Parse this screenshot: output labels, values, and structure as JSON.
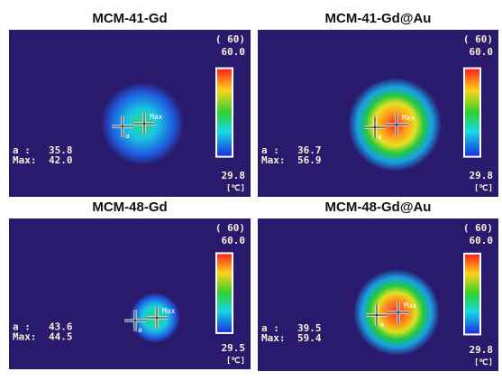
{
  "panels": [
    {
      "title": "MCM-41-Gd",
      "timer": "( 60)",
      "scale_max": "60.0",
      "scale_min": "29.8",
      "unit": "[℃]",
      "cursor_labels": [
        "Max",
        "a"
      ],
      "readouts": [
        {
          "label": "a :",
          "value": "35.8"
        },
        {
          "label": "Max:",
          "value": "42.0"
        }
      ]
    },
    {
      "title": "MCM-41-Gd@Au",
      "timer": "( 60)",
      "scale_max": "60.0",
      "scale_min": "29.8",
      "unit": "[℃]",
      "cursor_labels": [
        "Max",
        "a"
      ],
      "readouts": [
        {
          "label": "a :",
          "value": "36.7"
        },
        {
          "label": "Max:",
          "value": "56.9"
        }
      ]
    },
    {
      "title": "MCM-48-Gd",
      "timer": "( 60)",
      "scale_max": "60.0",
      "scale_min": "29.5",
      "unit": "[℃]",
      "cursor_labels": [
        "Max",
        "a"
      ],
      "readouts": [
        {
          "label": "a :",
          "value": "43.6"
        },
        {
          "label": "Max:",
          "value": "44.5"
        }
      ]
    },
    {
      "title": "MCM-48-Gd@Au",
      "timer": "( 60)",
      "scale_max": "60.0",
      "scale_min": "29.8",
      "unit": "[℃]",
      "cursor_labels": [
        "Max",
        "a"
      ],
      "readouts": [
        {
          "label": "a :",
          "value": "39.5"
        },
        {
          "label": "Max:",
          "value": "59.4"
        }
      ]
    }
  ]
}
